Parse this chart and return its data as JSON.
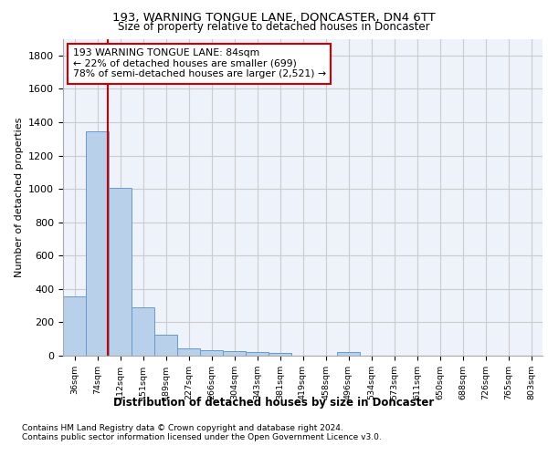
{
  "title": "193, WARNING TONGUE LANE, DONCASTER, DN4 6TT",
  "subtitle": "Size of property relative to detached houses in Doncaster",
  "xlabel": "Distribution of detached houses by size in Doncaster",
  "ylabel": "Number of detached properties",
  "bar_labels": [
    "36sqm",
    "74sqm",
    "112sqm",
    "151sqm",
    "189sqm",
    "227sqm",
    "266sqm",
    "304sqm",
    "343sqm",
    "381sqm",
    "419sqm",
    "458sqm",
    "496sqm",
    "534sqm",
    "573sqm",
    "611sqm",
    "650sqm",
    "688sqm",
    "726sqm",
    "765sqm",
    "803sqm"
  ],
  "bar_values": [
    355,
    1345,
    1005,
    290,
    125,
    42,
    35,
    30,
    22,
    15,
    0,
    0,
    22,
    0,
    0,
    0,
    0,
    0,
    0,
    0,
    0
  ],
  "bar_color": "#b8d0ea",
  "bar_edge_color": "#6699cc",
  "property_line_x": 1.45,
  "annotation_text_line1": "193 WARNING TONGUE LANE: 84sqm",
  "annotation_text_line2": "← 22% of detached houses are smaller (699)",
  "annotation_text_line3": "78% of semi-detached houses are larger (2,521) →",
  "annotation_box_color": "#cc0000",
  "property_line_color": "#cc0000",
  "ylim": [
    0,
    1900
  ],
  "yticks": [
    0,
    200,
    400,
    600,
    800,
    1000,
    1200,
    1400,
    1600,
    1800
  ],
  "grid_color": "#cccccc",
  "background_color": "#eef2fb",
  "footer_line1": "Contains HM Land Registry data © Crown copyright and database right 2024.",
  "footer_line2": "Contains public sector information licensed under the Open Government Licence v3.0."
}
